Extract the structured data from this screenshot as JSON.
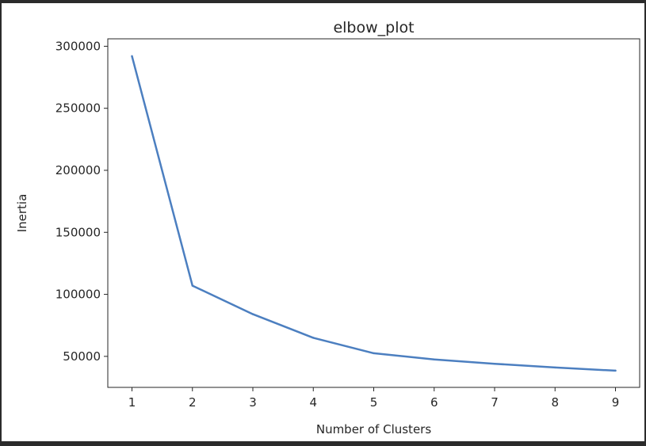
{
  "chart_data": {
    "type": "line",
    "title": "elbow_plot",
    "xlabel": "Number of Clusters",
    "ylabel": "Inertia",
    "x": [
      1,
      2,
      3,
      4,
      5,
      6,
      7,
      8,
      9
    ],
    "series": [
      {
        "values": [
          292000,
          107000,
          84000,
          65000,
          52500,
          47500,
          44000,
          41000,
          38500
        ],
        "color": "#4c7fc0"
      }
    ],
    "xlim": [
      0.6,
      9.4
    ],
    "ylim": [
      25000,
      306000
    ],
    "x_ticks": [
      "1",
      "2",
      "3",
      "4",
      "5",
      "6",
      "7",
      "8",
      "9"
    ],
    "y_ticks": [
      "50000",
      "100000",
      "150000",
      "200000",
      "250000",
      "300000"
    ],
    "grid": false,
    "legend": "none"
  }
}
